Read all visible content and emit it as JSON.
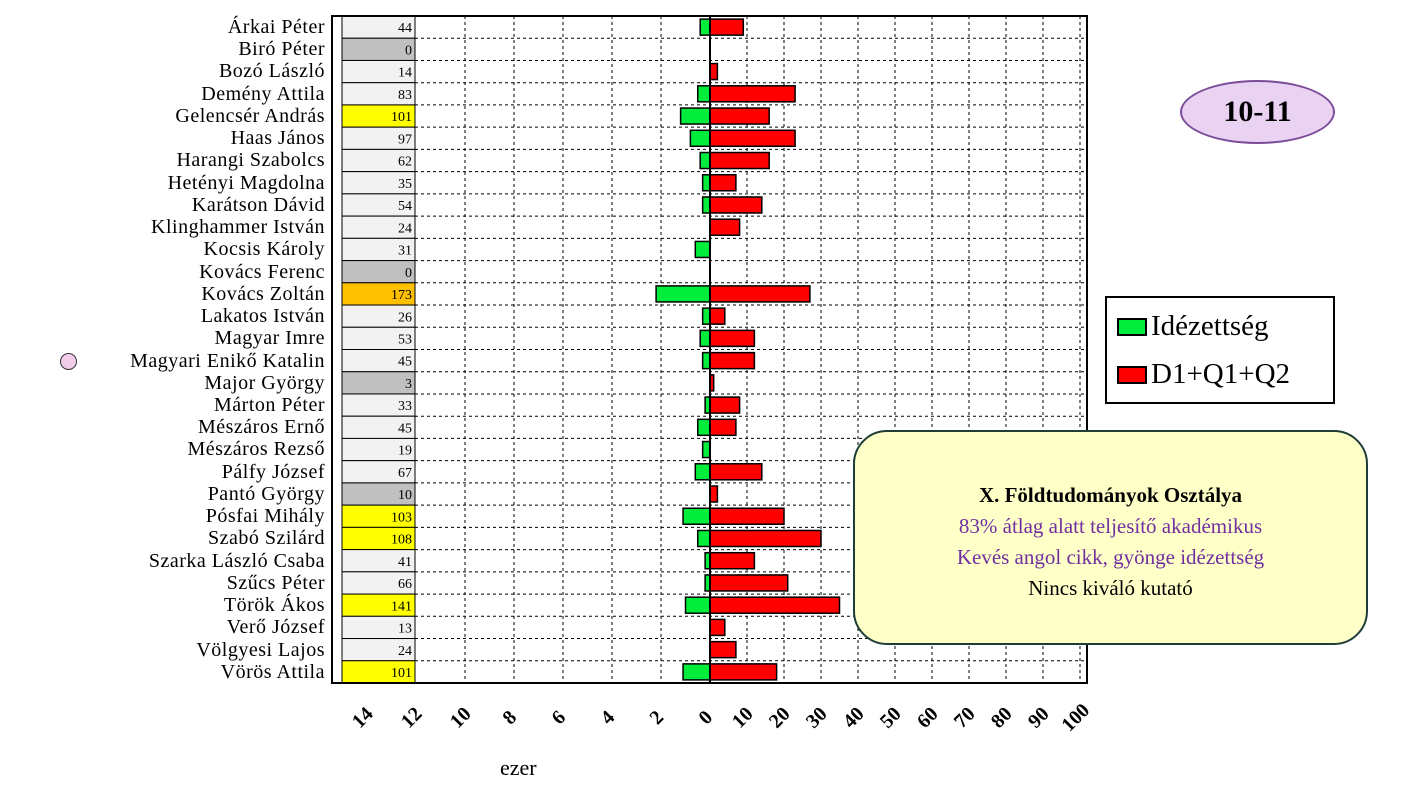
{
  "badge": "10-11",
  "legend": [
    {
      "label": "Idézettség",
      "color": "#00ee3b"
    },
    {
      "label": "D1+Q1+Q2",
      "color": "#ff0000"
    }
  ],
  "info": {
    "title": "X. Földtudományok Osztálya",
    "line1": "83% átlag alatt teljesítő akadémikus",
    "line2": "Kevés angol cikk, gyönge idézettség",
    "line3": "Nincs kiváló kutató"
  },
  "colors": {
    "cell_default": "#f2f2f2",
    "cell_zero": "#c0c0c0",
    "cell_high": "#ffff00",
    "cell_top": "#ffc000",
    "marker": "#f1cdea"
  },
  "chart_data": {
    "type": "bar",
    "orientation": "horizontal",
    "xlabel": "ezer",
    "left_axis_ticks": [
      "14",
      "12",
      "10",
      "8",
      "6",
      "4",
      "2",
      "0"
    ],
    "right_axis_ticks": [
      "10",
      "20",
      "30",
      "40",
      "50",
      "60",
      "70",
      "80",
      "90",
      "100"
    ],
    "left_axis_range": [
      0,
      14
    ],
    "right_axis_range": [
      0,
      100
    ],
    "grid": true,
    "legend_position": "right",
    "categories": [
      "Árkai Péter",
      "Biró Péter",
      "Bozó László",
      "Demény Attila",
      "Gelencsér András",
      "Haas János",
      "Harangi Szabolcs",
      "Hetényi Magdolna",
      "Karátson Dávid",
      "Klinghammer István",
      "Kocsis Károly",
      "Kovács Ferenc",
      "Kovács Zoltán",
      "Lakatos István",
      "Magyar Imre",
      "Magyari Enikő Katalin",
      "Major György",
      "Márton Péter",
      "Mészáros Ernő",
      "Mészáros Rezső",
      "Pálfy József",
      "Pantó György",
      "Pósfai Mihály",
      "Szabó Szilárd",
      "Szarka László Csaba",
      "Szűcs Péter",
      "Török Ákos",
      "Verő József",
      "Völgyesi Lajos",
      "Vörös Attila"
    ],
    "marked_category": "Magyari Enikő Katalin",
    "cell_values": [
      44,
      0,
      14,
      83,
      101,
      97,
      62,
      35,
      54,
      24,
      31,
      0,
      173,
      26,
      53,
      45,
      3,
      33,
      45,
      19,
      67,
      10,
      103,
      108,
      41,
      66,
      141,
      13,
      24,
      101
    ],
    "series": [
      {
        "name": "Idézettség",
        "unit": "ezer",
        "values": [
          0.4,
          0,
          0,
          0.5,
          1.2,
          0.8,
          0.4,
          0.3,
          0.3,
          0,
          0.6,
          0,
          2.2,
          0.3,
          0.4,
          0.3,
          0,
          0.2,
          0.5,
          0.3,
          0.6,
          0,
          1.1,
          0.5,
          0.2,
          0.2,
          1.0,
          0,
          0,
          1.1
        ]
      },
      {
        "name": "D1+Q1+Q2",
        "values": [
          9,
          0,
          2,
          23,
          16,
          23,
          16,
          7,
          14,
          8,
          0,
          0,
          27,
          4,
          12,
          12,
          1,
          8,
          7,
          0,
          14,
          2,
          20,
          30,
          12,
          21,
          35,
          4,
          7,
          18
        ]
      }
    ]
  }
}
